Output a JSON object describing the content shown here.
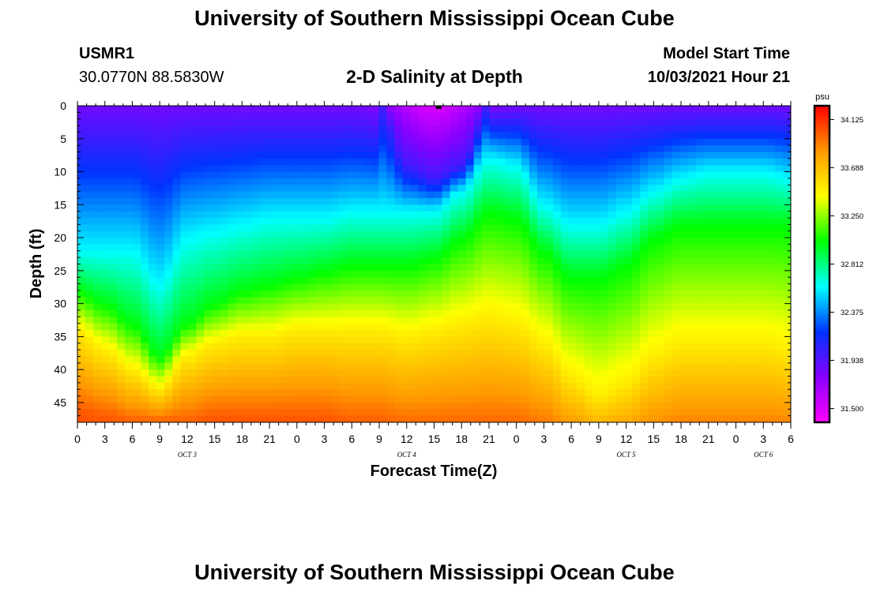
{
  "header": {
    "title_top": "University of Southern Mississippi Ocean Cube",
    "title_bottom": "University of Southern Mississippi Ocean Cube",
    "station_id": "USMR1",
    "coordinates": "30.0770N  88.5830W",
    "model_start_label": "Model Start Time",
    "model_start_value": "10/03/2021 Hour 21"
  },
  "chart_data": {
    "type": "heatmap",
    "title": "2-D Salinity at Depth",
    "xlabel": "Forecast Time(Z)",
    "ylabel": "Depth (ft)",
    "x_tick_labels": [
      "0",
      "3",
      "6",
      "9",
      "12",
      "15",
      "18",
      "21",
      "0",
      "3",
      "6",
      "9",
      "12",
      "15",
      "18",
      "21",
      "0",
      "3",
      "6",
      "9",
      "12",
      "15",
      "18",
      "21",
      "0",
      "3",
      "6"
    ],
    "x_range_hours": [
      0,
      78
    ],
    "x_tick_step_hours": 3,
    "day_labels": [
      {
        "text": "OCT 3",
        "hour": 12
      },
      {
        "text": "OCT 4",
        "hour": 36
      },
      {
        "text": "OCT 5",
        "hour": 60
      },
      {
        "text": "OCT 6",
        "hour": 75
      }
    ],
    "y_tick_labels": [
      "0",
      "5",
      "10",
      "15",
      "20",
      "25",
      "30",
      "35",
      "40",
      "45"
    ],
    "y_range_ft": [
      0,
      48
    ],
    "y_tick_step_ft": 5,
    "colorbar": {
      "unit": "psu",
      "min": 31.375,
      "max": 34.25,
      "tick_labels": [
        "34.125",
        "33.688",
        "33.250",
        "32.812",
        "32.375",
        "31.938",
        "31.500"
      ],
      "colors_low_to_high": [
        "#ff00ff",
        "#8800ff",
        "#0033ff",
        "#00ffff",
        "#00ff00",
        "#ffff00",
        "#ff9900",
        "#ff0000"
      ]
    },
    "marker": {
      "hour": 39.5,
      "depth_ft": 0
    },
    "depth_profile_x_hours": [
      0,
      3,
      6,
      9,
      12,
      15,
      18,
      21,
      24,
      27,
      30,
      33,
      36,
      39,
      42,
      45,
      48,
      51,
      54,
      57,
      60,
      63,
      66,
      69,
      72,
      75,
      78
    ],
    "profile_depths_ft": [
      0,
      8,
      16,
      24,
      32,
      40,
      48
    ],
    "isohaline_depths_ft": {
      "psu_32_0": [
        0,
        0,
        0,
        0,
        0,
        0,
        0,
        0,
        0,
        0,
        0,
        0,
        9,
        11,
        9,
        0,
        0,
        0,
        0,
        0,
        0,
        0,
        0,
        0,
        0,
        0,
        0
      ],
      "psu_32_6": [
        22,
        22,
        22,
        27,
        20,
        19,
        18,
        17,
        17,
        17,
        16,
        16,
        16,
        16,
        13,
        8,
        9,
        15,
        18,
        18,
        16,
        13,
        11,
        10,
        10,
        10,
        11
      ],
      "psu_33_0": [
        28,
        30,
        33,
        38,
        33,
        30,
        28,
        27,
        26,
        25,
        24,
        24,
        24,
        23,
        20,
        16,
        17,
        22,
        26,
        26,
        24,
        20,
        18,
        18,
        18,
        18,
        18
      ],
      "psu_33_5": [
        34,
        37,
        40,
        43,
        38,
        36,
        35,
        35,
        34,
        34,
        34,
        34,
        35,
        34,
        33,
        32,
        33,
        36,
        41,
        44,
        42,
        38,
        36,
        36,
        36,
        36,
        37
      ],
      "psu_34_0": [
        46,
        47,
        48,
        48,
        48,
        47,
        47,
        47,
        47,
        47,
        48,
        48,
        49,
        49,
        49,
        49,
        49,
        50,
        52,
        53,
        53,
        52,
        51,
        51,
        51,
        51,
        51
      ]
    }
  }
}
